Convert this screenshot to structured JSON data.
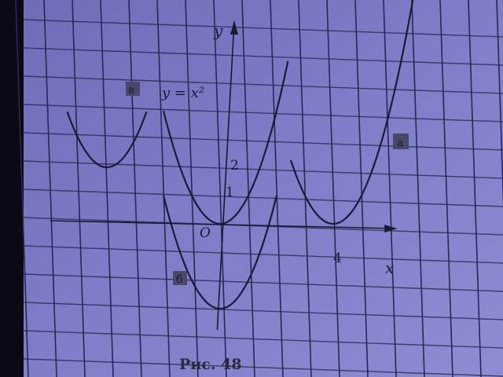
{
  "chart_data": {
    "type": "line",
    "title": "",
    "caption": "Рис. 48",
    "xlabel": "x",
    "ylabel": "y",
    "origin_label": "O",
    "x_tick_labels": [
      "4"
    ],
    "y_tick_labels": [
      "1",
      "2"
    ],
    "grid": true,
    "equation_label": "y = x²",
    "series": [
      {
        "panel_label": "а",
        "vertex": [
          4,
          0
        ],
        "x_range": [
          2.5,
          7
        ],
        "equation": "y = (x - 4)^2"
      },
      {
        "panel_label": "б",
        "vertex": [
          0,
          -3
        ],
        "x_range": [
          -2,
          2
        ],
        "equation": "y = x^2 - 3"
      },
      {
        "panel_label": "в",
        "vertex": [
          -4,
          2
        ],
        "x_range": [
          -5.4,
          -2.6
        ],
        "equation": "y = (x + 4)^2 + 2"
      },
      {
        "name": "y = x²",
        "vertex": [
          0,
          0
        ],
        "x_range": [
          -2,
          2.4
        ],
        "equation": "y = x^2"
      }
    ],
    "colors": {
      "page": "#7d7bc4",
      "grid": "#2a2850",
      "curve": "#1c1a34",
      "label_box": "#4a4868"
    }
  }
}
